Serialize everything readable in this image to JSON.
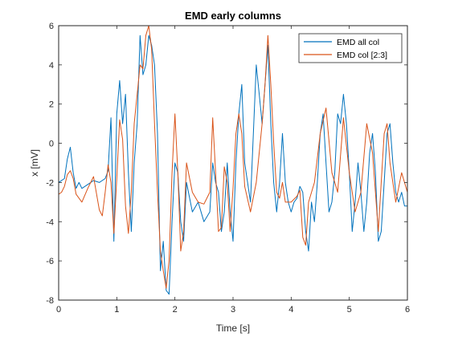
{
  "chart_data": {
    "type": "line",
    "title": "EMD early columns",
    "xlabel": "Time [s]",
    "ylabel": "x [mV]",
    "xlim": [
      0,
      6
    ],
    "ylim": [
      -8,
      6
    ],
    "x_ticks": [
      0,
      1,
      2,
      3,
      4,
      5,
      6
    ],
    "y_ticks": [
      -8,
      -6,
      -4,
      -2,
      0,
      2,
      4,
      6
    ],
    "grid": false,
    "legend_position": "top-right",
    "series": [
      {
        "name": "EMD all col",
        "color": "#0072BD",
        "x": [
          0.0,
          0.1,
          0.15,
          0.2,
          0.25,
          0.3,
          0.35,
          0.4,
          0.5,
          0.6,
          0.7,
          0.8,
          0.85,
          0.9,
          0.95,
          1.0,
          1.05,
          1.1,
          1.15,
          1.2,
          1.25,
          1.3,
          1.35,
          1.4,
          1.45,
          1.5,
          1.55,
          1.6,
          1.65,
          1.7,
          1.75,
          1.8,
          1.85,
          1.9,
          1.95,
          2.0,
          2.05,
          2.1,
          2.15,
          2.2,
          2.3,
          2.4,
          2.5,
          2.6,
          2.65,
          2.7,
          2.75,
          2.8,
          2.85,
          2.9,
          2.95,
          3.0,
          3.05,
          3.1,
          3.15,
          3.2,
          3.25,
          3.3,
          3.35,
          3.4,
          3.45,
          3.5,
          3.55,
          3.6,
          3.65,
          3.7,
          3.75,
          3.8,
          3.85,
          3.9,
          3.95,
          4.0,
          4.05,
          4.1,
          4.15,
          4.2,
          4.25,
          4.3,
          4.35,
          4.4,
          4.45,
          4.5,
          4.55,
          4.6,
          4.65,
          4.7,
          4.75,
          4.8,
          4.85,
          4.9,
          4.95,
          5.0,
          5.05,
          5.1,
          5.15,
          5.2,
          5.25,
          5.3,
          5.35,
          5.4,
          5.45,
          5.5,
          5.55,
          5.6,
          5.65,
          5.7,
          5.75,
          5.8,
          5.85,
          5.9,
          5.95,
          6.0
        ],
        "y": [
          -2.0,
          -1.8,
          -0.8,
          -0.2,
          -1.5,
          -2.3,
          -2.0,
          -2.3,
          -2.1,
          -1.9,
          -2.0,
          -1.8,
          -1.4,
          1.3,
          -5.0,
          1.5,
          3.2,
          1.0,
          2.5,
          -1.5,
          -4.5,
          -1.0,
          1.0,
          5.5,
          3.5,
          4.0,
          5.5,
          5.0,
          4.0,
          0.5,
          -6.5,
          -5.0,
          -7.5,
          -7.7,
          -4.0,
          -1.0,
          -1.5,
          -4.0,
          -5.0,
          -2.0,
          -3.5,
          -3.0,
          -4.0,
          -3.5,
          -1.0,
          -2.0,
          -2.5,
          -4.5,
          -3.5,
          -1.0,
          -3.5,
          -5.0,
          -1.0,
          1.5,
          3.0,
          -1.0,
          -2.0,
          -3.0,
          0.5,
          4.0,
          2.5,
          1.0,
          3.0,
          5.0,
          1.0,
          -2.0,
          -3.5,
          -2.0,
          0.5,
          -2.0,
          -3.0,
          -3.5,
          -3.0,
          -2.8,
          -2.2,
          -2.5,
          -4.5,
          -5.5,
          -3.0,
          -4.0,
          -2.0,
          0.5,
          1.5,
          -1.0,
          -3.5,
          -3.0,
          -1.5,
          1.5,
          1.0,
          2.5,
          1.0,
          -1.5,
          -4.5,
          -3.0,
          -1.0,
          -2.5,
          -4.5,
          -3.0,
          -0.5,
          0.5,
          -1.5,
          -5.0,
          -4.5,
          -2.0,
          0.5,
          1.0,
          -1.0,
          -2.5,
          -3.0,
          -2.5,
          -3.2,
          -3.2
        ]
      },
      {
        "name": "EMD col [2:3]",
        "color": "#D95319",
        "x": [
          0.0,
          0.05,
          0.1,
          0.15,
          0.2,
          0.25,
          0.3,
          0.4,
          0.5,
          0.6,
          0.7,
          0.75,
          0.8,
          0.85,
          0.9,
          0.95,
          1.0,
          1.05,
          1.1,
          1.15,
          1.2,
          1.25,
          1.3,
          1.35,
          1.4,
          1.45,
          1.5,
          1.55,
          1.6,
          1.65,
          1.7,
          1.75,
          1.8,
          1.85,
          1.9,
          1.95,
          2.0,
          2.05,
          2.1,
          2.15,
          2.2,
          2.3,
          2.4,
          2.5,
          2.6,
          2.65,
          2.7,
          2.75,
          2.8,
          2.85,
          2.9,
          2.95,
          3.0,
          3.05,
          3.1,
          3.15,
          3.2,
          3.3,
          3.4,
          3.5,
          3.55,
          3.6,
          3.65,
          3.7,
          3.75,
          3.8,
          3.85,
          3.9,
          4.0,
          4.1,
          4.15,
          4.2,
          4.25,
          4.3,
          4.4,
          4.5,
          4.6,
          4.7,
          4.8,
          4.9,
          5.0,
          5.1,
          5.2,
          5.3,
          5.4,
          5.5,
          5.55,
          5.6,
          5.65,
          5.7,
          5.8,
          5.9,
          6.0
        ],
        "y": [
          -2.6,
          -2.5,
          -2.2,
          -1.6,
          -1.4,
          -1.8,
          -2.6,
          -3.0,
          -2.3,
          -1.7,
          -3.4,
          -3.7,
          -2.5,
          -1.1,
          -2.0,
          -4.6,
          -1.8,
          1.2,
          0.2,
          -3.2,
          -4.6,
          -2.5,
          1.0,
          2.5,
          4.0,
          3.8,
          5.5,
          6.0,
          4.8,
          1.0,
          -2.5,
          -5.5,
          -6.5,
          -7.4,
          -6.0,
          -1.5,
          1.5,
          -1.5,
          -5.5,
          -4.5,
          -1.0,
          -2.5,
          -3.0,
          -3.1,
          -2.5,
          1.3,
          -1.5,
          -4.5,
          -4.3,
          -1.2,
          -2.0,
          -4.5,
          -2.3,
          0.5,
          1.5,
          0.5,
          -2.2,
          -3.5,
          -2.0,
          1.0,
          3.0,
          5.5,
          3.0,
          0.0,
          -2.5,
          -2.8,
          -2.0,
          -3.0,
          -3.0,
          -2.7,
          -2.4,
          -4.8,
          -5.2,
          -3.0,
          -2.0,
          0.5,
          1.8,
          -1.5,
          -2.5,
          1.3,
          -1.5,
          -3.5,
          -2.5,
          1.0,
          -0.5,
          -4.5,
          -2.0,
          0.5,
          1.0,
          -1.0,
          -3.0,
          -1.5,
          -2.5
        ]
      }
    ]
  }
}
